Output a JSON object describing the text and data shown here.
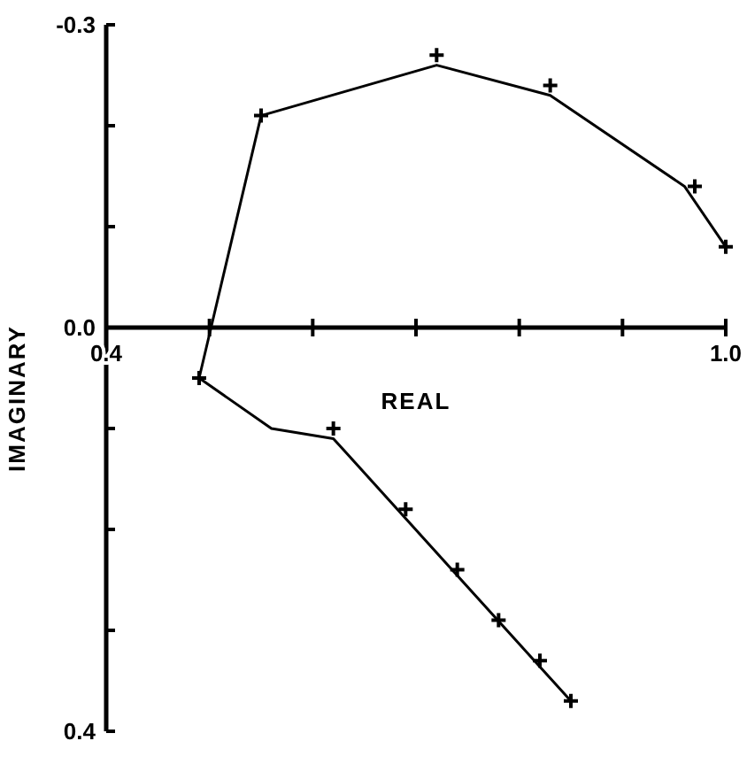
{
  "chart_data": {
    "type": "line",
    "xlabel": "REAL",
    "ylabel": "IMAGINARY",
    "xlim": [
      0.4,
      1.0
    ],
    "ylim": [
      0.4,
      -0.3
    ],
    "xticks": [
      0.4,
      {
        "value": 0.5,
        "label": null
      },
      {
        "value": 0.6,
        "label": null
      },
      {
        "value": 0.7,
        "label": null
      },
      {
        "value": 0.8,
        "label": null
      },
      {
        "value": 0.9,
        "label": null
      },
      {
        "value": 1.0,
        "label": "1.0"
      }
    ],
    "yticks": [
      -0.3,
      {
        "value": -0.2,
        "label": null
      },
      {
        "value": -0.1,
        "label": null
      },
      {
        "value": 0.0,
        "label": "0.0"
      },
      {
        "value": 0.1,
        "label": null
      },
      {
        "value": 0.2,
        "label": null
      },
      {
        "value": 0.3,
        "label": null
      },
      0.4
    ],
    "grid": false,
    "series": [
      {
        "color": "#000000",
        "marker": "none",
        "line_style": "solid",
        "x": [
          1.0,
          0.96,
          0.83,
          0.72,
          0.55,
          0.49,
          0.56,
          0.62,
          0.85
        ],
        "values": [
          -0.08,
          -0.14,
          -0.23,
          -0.26,
          -0.21,
          0.05,
          0.1,
          0.11,
          0.37
        ]
      },
      {
        "type": "scatter",
        "color": "#000000",
        "marker": "cross",
        "x": [
          0.55,
          0.72,
          0.83,
          0.97,
          1.0,
          0.49,
          0.62,
          0.69,
          0.74,
          0.78,
          0.82,
          0.85
        ],
        "values": [
          -0.21,
          -0.27,
          -0.24,
          -0.14,
          -0.08,
          0.05,
          0.1,
          0.18,
          0.24,
          0.29,
          0.33,
          0.37
        ]
      }
    ]
  }
}
